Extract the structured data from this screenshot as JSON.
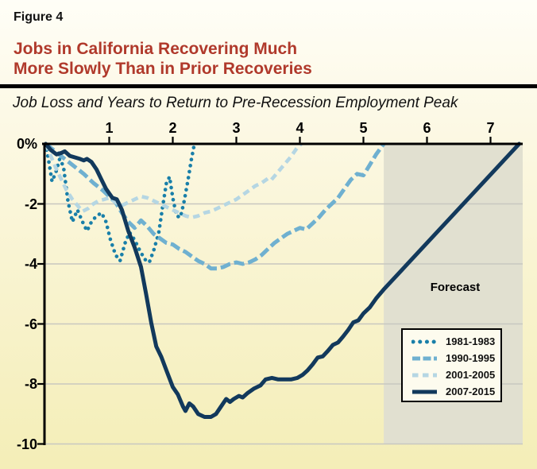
{
  "figure_label": "Figure 4",
  "title_line1": "Jobs in California Recovering Much",
  "title_line2": "More Slowly Than in Prior Recoveries",
  "subtitle": "Job Loss and Years to Return to Pre-Recession Employment Peak",
  "colors": {
    "title_red": "#b0392b",
    "axis": "#000000",
    "gridline": "#c8c7c0",
    "forecast_fill": "#e1e0d0",
    "legend_background": "#fdfbee",
    "series_1981": "#197fa9",
    "series_1990": "#6fb0d0",
    "series_2001": "#b5d6e3",
    "series_2007": "#12395c"
  },
  "chart_data": {
    "type": "line",
    "title": "Job Loss and Years to Return to Pre-Recession Employment Peak",
    "xlabel": "",
    "ylabel": "",
    "xlim": [
      0,
      7.52
    ],
    "ylim": [
      -10,
      0
    ],
    "x_ticks": [
      1,
      2,
      3,
      4,
      5,
      6,
      7
    ],
    "y_ticks": [
      0,
      -2,
      -4,
      -6,
      -8,
      -10
    ],
    "y_tick_labels": [
      "0%",
      "-2",
      "-4",
      "-6",
      "-8",
      "-10"
    ],
    "grid": "horizontal",
    "legend_position": "lower-right",
    "forecast_region": {
      "label": "Forecast",
      "x_start": 5.32,
      "x_end": 7.52
    },
    "series": [
      {
        "name": "1981-1983",
        "style": "dotted",
        "color": "#197fa9",
        "points": [
          [
            0,
            0
          ],
          [
            0.05,
            -0.6
          ],
          [
            0.1,
            -1.25
          ],
          [
            0.16,
            -0.95
          ],
          [
            0.22,
            -0.5
          ],
          [
            0.28,
            -0.75
          ],
          [
            0.35,
            -1.9
          ],
          [
            0.42,
            -2.6
          ],
          [
            0.5,
            -2.2
          ],
          [
            0.58,
            -2.6
          ],
          [
            0.65,
            -2.9
          ],
          [
            0.72,
            -2.6
          ],
          [
            0.8,
            -2.4
          ],
          [
            0.88,
            -2.3
          ],
          [
            0.95,
            -2.6
          ],
          [
            1.02,
            -3.2
          ],
          [
            1.1,
            -3.7
          ],
          [
            1.17,
            -3.9
          ],
          [
            1.25,
            -3.3
          ],
          [
            1.32,
            -2.95
          ],
          [
            1.4,
            -3.2
          ],
          [
            1.48,
            -3.55
          ],
          [
            1.56,
            -3.85
          ],
          [
            1.63,
            -3.95
          ],
          [
            1.7,
            -3.55
          ],
          [
            1.78,
            -2.95
          ],
          [
            1.84,
            -2.1
          ],
          [
            1.9,
            -1.3
          ],
          [
            1.95,
            -1.1
          ],
          [
            2.0,
            -1.8
          ],
          [
            2.06,
            -2.4
          ],
          [
            2.12,
            -2.45
          ],
          [
            2.18,
            -1.9
          ],
          [
            2.24,
            -1.2
          ],
          [
            2.29,
            -0.55
          ],
          [
            2.34,
            0
          ]
        ]
      },
      {
        "name": "1990-1995",
        "style": "dashed",
        "color": "#6fb0d0",
        "points": [
          [
            0,
            0
          ],
          [
            0.15,
            -0.25
          ],
          [
            0.3,
            -0.5
          ],
          [
            0.45,
            -0.75
          ],
          [
            0.6,
            -1.0
          ],
          [
            0.75,
            -1.3
          ],
          [
            0.9,
            -1.55
          ],
          [
            1.0,
            -1.75
          ],
          [
            1.1,
            -1.95
          ],
          [
            1.2,
            -2.3
          ],
          [
            1.3,
            -2.6
          ],
          [
            1.4,
            -2.8
          ],
          [
            1.5,
            -2.55
          ],
          [
            1.6,
            -2.75
          ],
          [
            1.7,
            -3.0
          ],
          [
            1.8,
            -3.15
          ],
          [
            1.9,
            -3.3
          ],
          [
            2.0,
            -3.35
          ],
          [
            2.1,
            -3.5
          ],
          [
            2.2,
            -3.6
          ],
          [
            2.3,
            -3.75
          ],
          [
            2.4,
            -3.9
          ],
          [
            2.5,
            -4.0
          ],
          [
            2.6,
            -4.15
          ],
          [
            2.7,
            -4.15
          ],
          [
            2.8,
            -4.1
          ],
          [
            2.9,
            -4.0
          ],
          [
            3.0,
            -3.95
          ],
          [
            3.1,
            -4.0
          ],
          [
            3.2,
            -3.95
          ],
          [
            3.3,
            -3.85
          ],
          [
            3.4,
            -3.7
          ],
          [
            3.5,
            -3.5
          ],
          [
            3.6,
            -3.3
          ],
          [
            3.7,
            -3.15
          ],
          [
            3.8,
            -3.0
          ],
          [
            3.9,
            -2.9
          ],
          [
            4.0,
            -2.8
          ],
          [
            4.1,
            -2.85
          ],
          [
            4.2,
            -2.65
          ],
          [
            4.3,
            -2.45
          ],
          [
            4.4,
            -2.2
          ],
          [
            4.5,
            -2.0
          ],
          [
            4.6,
            -1.8
          ],
          [
            4.7,
            -1.5
          ],
          [
            4.8,
            -1.2
          ],
          [
            4.9,
            -1.0
          ],
          [
            5.0,
            -1.05
          ],
          [
            5.1,
            -0.7
          ],
          [
            5.2,
            -0.35
          ],
          [
            5.32,
            0
          ]
        ]
      },
      {
        "name": "2001-2005",
        "style": "dashed-light",
        "color": "#b5d6e3",
        "points": [
          [
            0,
            0
          ],
          [
            0.08,
            -0.4
          ],
          [
            0.16,
            -0.8
          ],
          [
            0.25,
            -1.2
          ],
          [
            0.33,
            -1.55
          ],
          [
            0.42,
            -1.85
          ],
          [
            0.5,
            -2.05
          ],
          [
            0.58,
            -2.25
          ],
          [
            0.67,
            -2.15
          ],
          [
            0.75,
            -2.0
          ],
          [
            0.83,
            -1.9
          ],
          [
            0.92,
            -1.85
          ],
          [
            1.0,
            -1.8
          ],
          [
            1.1,
            -1.95
          ],
          [
            1.2,
            -2.05
          ],
          [
            1.3,
            -1.95
          ],
          [
            1.4,
            -1.85
          ],
          [
            1.5,
            -1.75
          ],
          [
            1.6,
            -1.8
          ],
          [
            1.7,
            -1.9
          ],
          [
            1.8,
            -2.0
          ],
          [
            1.9,
            -2.1
          ],
          [
            2.0,
            -2.2
          ],
          [
            2.1,
            -2.3
          ],
          [
            2.2,
            -2.4
          ],
          [
            2.3,
            -2.45
          ],
          [
            2.4,
            -2.4
          ],
          [
            2.5,
            -2.3
          ],
          [
            2.6,
            -2.25
          ],
          [
            2.7,
            -2.15
          ],
          [
            2.8,
            -2.05
          ],
          [
            2.9,
            -1.95
          ],
          [
            3.0,
            -1.85
          ],
          [
            3.1,
            -1.7
          ],
          [
            3.2,
            -1.55
          ],
          [
            3.3,
            -1.4
          ],
          [
            3.4,
            -1.3
          ],
          [
            3.5,
            -1.15
          ],
          [
            3.55,
            -1.2
          ],
          [
            3.65,
            -0.95
          ],
          [
            3.75,
            -0.7
          ],
          [
            3.85,
            -0.45
          ],
          [
            3.95,
            -0.15
          ],
          [
            4.02,
            0
          ]
        ]
      },
      {
        "name": "2007-2015",
        "style": "solid",
        "color": "#12395c",
        "points": [
          [
            0,
            0
          ],
          [
            0.08,
            -0.2
          ],
          [
            0.17,
            -0.35
          ],
          [
            0.25,
            -0.3
          ],
          [
            0.3,
            -0.25
          ],
          [
            0.38,
            -0.4
          ],
          [
            0.46,
            -0.45
          ],
          [
            0.54,
            -0.5
          ],
          [
            0.6,
            -0.55
          ],
          [
            0.65,
            -0.5
          ],
          [
            0.72,
            -0.6
          ],
          [
            0.8,
            -0.85
          ],
          [
            0.88,
            -1.2
          ],
          [
            0.95,
            -1.5
          ],
          [
            1.0,
            -1.65
          ],
          [
            1.05,
            -1.8
          ],
          [
            1.12,
            -1.85
          ],
          [
            1.2,
            -2.2
          ],
          [
            1.3,
            -2.9
          ],
          [
            1.4,
            -3.45
          ],
          [
            1.5,
            -4.1
          ],
          [
            1.58,
            -5.0
          ],
          [
            1.66,
            -5.95
          ],
          [
            1.74,
            -6.75
          ],
          [
            1.82,
            -7.1
          ],
          [
            1.9,
            -7.55
          ],
          [
            2.0,
            -8.1
          ],
          [
            2.08,
            -8.35
          ],
          [
            2.16,
            -8.75
          ],
          [
            2.2,
            -8.9
          ],
          [
            2.26,
            -8.65
          ],
          [
            2.32,
            -8.75
          ],
          [
            2.4,
            -9.0
          ],
          [
            2.5,
            -9.1
          ],
          [
            2.6,
            -9.1
          ],
          [
            2.68,
            -9.0
          ],
          [
            2.76,
            -8.75
          ],
          [
            2.84,
            -8.5
          ],
          [
            2.9,
            -8.6
          ],
          [
            2.96,
            -8.5
          ],
          [
            3.04,
            -8.4
          ],
          [
            3.1,
            -8.45
          ],
          [
            3.18,
            -8.3
          ],
          [
            3.28,
            -8.15
          ],
          [
            3.38,
            -8.05
          ],
          [
            3.46,
            -7.85
          ],
          [
            3.56,
            -7.8
          ],
          [
            3.66,
            -7.85
          ],
          [
            3.76,
            -7.85
          ],
          [
            3.86,
            -7.85
          ],
          [
            3.96,
            -7.8
          ],
          [
            4.04,
            -7.7
          ],
          [
            4.12,
            -7.55
          ],
          [
            4.2,
            -7.35
          ],
          [
            4.28,
            -7.12
          ],
          [
            4.36,
            -7.08
          ],
          [
            4.44,
            -6.9
          ],
          [
            4.52,
            -6.7
          ],
          [
            4.6,
            -6.62
          ],
          [
            4.68,
            -6.42
          ],
          [
            4.76,
            -6.2
          ],
          [
            4.84,
            -5.95
          ],
          [
            4.92,
            -5.88
          ],
          [
            5.0,
            -5.65
          ],
          [
            5.1,
            -5.45
          ],
          [
            5.2,
            -5.15
          ],
          [
            5.32,
            -4.85
          ],
          [
            7.45,
            0
          ]
        ]
      }
    ]
  }
}
